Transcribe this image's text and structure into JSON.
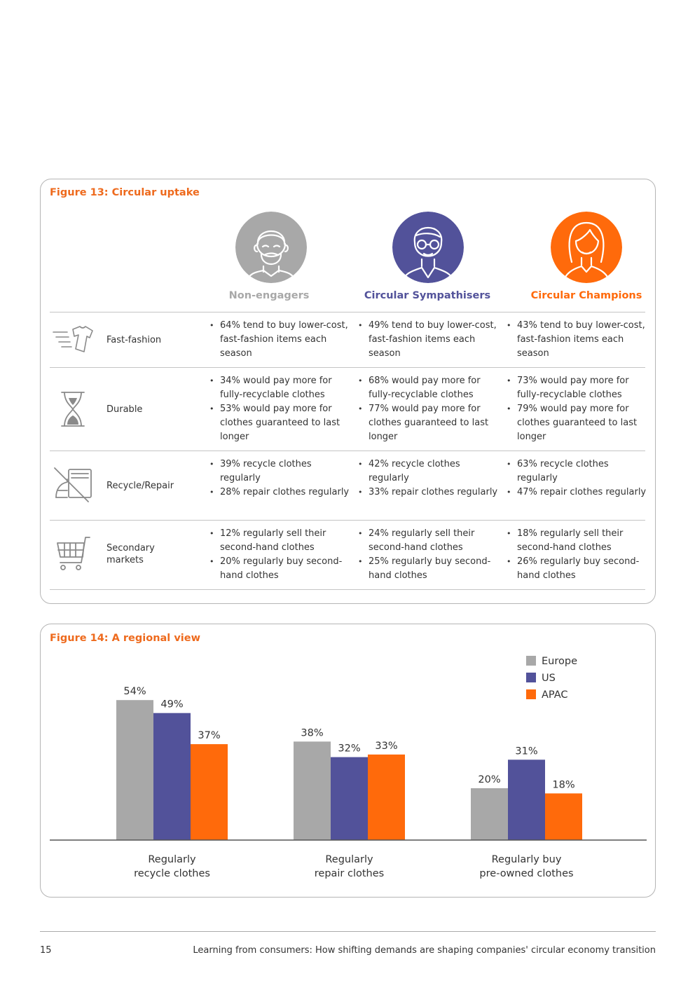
{
  "figure13": {
    "title": "Figure 13: Circular uptake",
    "segments": [
      {
        "name": "Non-engagers",
        "color": "#a8a8a8",
        "avatar_icon": "bearded-man-icon"
      },
      {
        "name": "Circular Sympathisers",
        "color": "#52529a",
        "avatar_icon": "man-with-glasses-icon"
      },
      {
        "name": "Circular Champions",
        "color": "#ff6a0b",
        "avatar_icon": "woman-icon"
      }
    ],
    "rows": [
      {
        "label": "Fast-fashion",
        "icon": "fast-tshirt-icon",
        "cells": [
          [
            "64% tend to buy lower-cost, fast-fashion items each season"
          ],
          [
            "49% tend to buy lower-cost, fast-fashion items each season"
          ],
          [
            "43% tend to buy lower-cost, fast-fashion items each season"
          ]
        ]
      },
      {
        "label": "Durable",
        "icon": "hourglass-icon",
        "cells": [
          [
            "34% would pay more for fully-recyclable clothes",
            "53% would pay more for clothes guaranteed to last longer"
          ],
          [
            "68% would pay more for fully-recyclable clothes",
            "77% would pay more for clothes guaranteed to last longer"
          ],
          [
            "73% would pay more for fully-recyclable clothes",
            "79% would pay more for clothes guaranteed to last longer"
          ]
        ]
      },
      {
        "label": "Recycle/Repair",
        "icon": "no-iron-recycle-icon",
        "cells": [
          [
            "39% recycle clothes regularly",
            "28% repair clothes regularly"
          ],
          [
            "42% recycle clothes regularly",
            "33% repair clothes regularly"
          ],
          [
            "63% recycle clothes regularly",
            "47% repair clothes regularly"
          ]
        ]
      },
      {
        "label": "Secondary markets",
        "icon": "shopping-cart-icon",
        "cells": [
          [
            "12% regularly sell their second-hand clothes",
            "20% regularly buy second-hand clothes"
          ],
          [
            "24% regularly sell their second-hand clothes",
            "25% regularly buy second-hand clothes"
          ],
          [
            "18% regularly sell their second-hand clothes",
            "26% regularly buy second-hand clothes"
          ]
        ]
      }
    ]
  },
  "figure14": {
    "title": "Figure 14: A regional view"
  },
  "chart_data": {
    "type": "bar",
    "categories": [
      [
        "Regularly",
        "recycle clothes"
      ],
      [
        "Regularly",
        "repair clothes"
      ],
      [
        "Regularly buy",
        "pre-owned clothes"
      ]
    ],
    "series": [
      {
        "name": "Europe",
        "color": "#a8a8a8",
        "values": [
          54,
          38,
          20
        ],
        "labels": [
          "54%",
          "38%",
          "20%"
        ]
      },
      {
        "name": "US",
        "color": "#52529a",
        "values": [
          49,
          32,
          31
        ],
        "labels": [
          "49%",
          "32%",
          "31%"
        ]
      },
      {
        "name": "APAC",
        "color": "#ff6a0b",
        "values": [
          37,
          33,
          18
        ],
        "labels": [
          "37%",
          "33%",
          "18%"
        ]
      }
    ],
    "ylim": [
      0,
      60
    ],
    "grid": false,
    "legend": "top-right",
    "title": "",
    "xlabel": "",
    "ylabel": ""
  },
  "footer": {
    "page_number": "15",
    "running_title": "Learning from consumers: How shifting demands are shaping companies' circular economy transition"
  }
}
